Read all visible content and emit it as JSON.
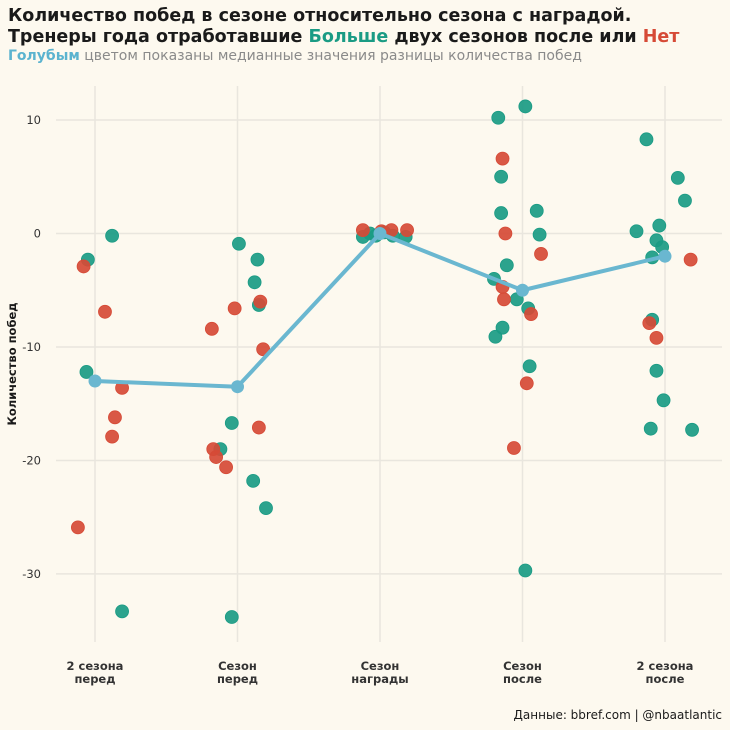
{
  "header": {
    "title_line1": "Количество побед в сезоне относительно сезона с наградой.",
    "title_line2_prefix": "Тренеры года отработавшие ",
    "title_line2_more": "Больше",
    "title_line2_middle": " двух сезонов после или ",
    "title_line2_no": "Нет",
    "subtitle_blue": "Голубым",
    "subtitle_rest": " цветом показаны медианные значения разницы количества побед"
  },
  "caption": "Данные: bbref.com | @nbaatlantic",
  "colors": {
    "more": "#1a9b84",
    "no": "#d64a36",
    "median": "#6ab7d0",
    "grid": "#e9e6de",
    "background": "#fdf9ef"
  },
  "chart_data": {
    "type": "scatter",
    "ylabel": "Количество побед",
    "xlabel": "",
    "ylim": [
      -36,
      13
    ],
    "yticks": [
      10,
      0,
      -10,
      -20,
      -30
    ],
    "categories": [
      [
        "2 сезона",
        "перед"
      ],
      [
        "Сезон",
        "перед"
      ],
      [
        "Сезон",
        "награды"
      ],
      [
        "Сезон",
        "после"
      ],
      [
        "2 сезона",
        "после"
      ]
    ],
    "series": [
      {
        "name": "Больше",
        "points": [
          {
            "cat": 0,
            "j": -0.05,
            "y": -2.3
          },
          {
            "cat": 0,
            "j": 0.12,
            "y": -0.2
          },
          {
            "cat": 0,
            "j": -0.06,
            "y": -12.2
          },
          {
            "cat": 0,
            "j": 0.19,
            "y": -33.3
          },
          {
            "cat": 1,
            "j": 0.01,
            "y": -0.9
          },
          {
            "cat": 1,
            "j": 0.14,
            "y": -2.3
          },
          {
            "cat": 1,
            "j": 0.12,
            "y": -4.3
          },
          {
            "cat": 1,
            "j": 0.15,
            "y": -6.3
          },
          {
            "cat": 1,
            "j": -0.04,
            "y": -16.7
          },
          {
            "cat": 1,
            "j": -0.12,
            "y": -19.0
          },
          {
            "cat": 1,
            "j": 0.11,
            "y": -21.8
          },
          {
            "cat": 1,
            "j": 0.2,
            "y": -24.2
          },
          {
            "cat": 1,
            "j": -0.04,
            "y": -33.8
          },
          {
            "cat": 2,
            "j": -0.12,
            "y": -0.3
          },
          {
            "cat": 2,
            "j": -0.07,
            "y": 0.0
          },
          {
            "cat": 2,
            "j": -0.03,
            "y": -0.2
          },
          {
            "cat": 2,
            "j": 0.03,
            "y": 0.1
          },
          {
            "cat": 2,
            "j": 0.09,
            "y": -0.2
          },
          {
            "cat": 2,
            "j": 0.18,
            "y": -0.3
          },
          {
            "cat": 3,
            "j": -0.17,
            "y": 10.2
          },
          {
            "cat": 3,
            "j": 0.02,
            "y": 11.2
          },
          {
            "cat": 3,
            "j": -0.15,
            "y": 5.0
          },
          {
            "cat": 3,
            "j": -0.15,
            "y": 1.8
          },
          {
            "cat": 3,
            "j": 0.1,
            "y": 2.0
          },
          {
            "cat": 3,
            "j": 0.12,
            "y": -0.1
          },
          {
            "cat": 3,
            "j": -0.11,
            "y": -2.8
          },
          {
            "cat": 3,
            "j": -0.2,
            "y": -4.0
          },
          {
            "cat": 3,
            "j": -0.04,
            "y": -5.8
          },
          {
            "cat": 3,
            "j": 0.04,
            "y": -6.6
          },
          {
            "cat": 3,
            "j": -0.14,
            "y": -8.3
          },
          {
            "cat": 3,
            "j": -0.19,
            "y": -9.1
          },
          {
            "cat": 3,
            "j": 0.05,
            "y": -11.7
          },
          {
            "cat": 3,
            "j": 0.02,
            "y": -29.7
          },
          {
            "cat": 4,
            "j": -0.13,
            "y": 8.3
          },
          {
            "cat": 4,
            "j": 0.09,
            "y": 4.9
          },
          {
            "cat": 4,
            "j": 0.14,
            "y": 2.9
          },
          {
            "cat": 4,
            "j": -0.2,
            "y": 0.2
          },
          {
            "cat": 4,
            "j": -0.04,
            "y": 0.7
          },
          {
            "cat": 4,
            "j": -0.06,
            "y": -0.6
          },
          {
            "cat": 4,
            "j": -0.02,
            "y": -1.2
          },
          {
            "cat": 4,
            "j": -0.09,
            "y": -2.1
          },
          {
            "cat": 4,
            "j": -0.09,
            "y": -7.6
          },
          {
            "cat": 4,
            "j": -0.06,
            "y": -12.1
          },
          {
            "cat": 4,
            "j": -0.01,
            "y": -14.7
          },
          {
            "cat": 4,
            "j": -0.1,
            "y": -17.2
          },
          {
            "cat": 4,
            "j": 0.19,
            "y": -17.3
          }
        ]
      },
      {
        "name": "Нет",
        "points": [
          {
            "cat": 0,
            "j": -0.08,
            "y": -2.9
          },
          {
            "cat": 0,
            "j": 0.07,
            "y": -6.9
          },
          {
            "cat": 0,
            "j": 0.19,
            "y": -13.6
          },
          {
            "cat": 0,
            "j": 0.14,
            "y": -16.2
          },
          {
            "cat": 0,
            "j": 0.12,
            "y": -17.9
          },
          {
            "cat": 0,
            "j": -0.12,
            "y": -25.9
          },
          {
            "cat": 1,
            "j": -0.02,
            "y": -6.6
          },
          {
            "cat": 1,
            "j": 0.16,
            "y": -6.0
          },
          {
            "cat": 1,
            "j": -0.18,
            "y": -8.4
          },
          {
            "cat": 1,
            "j": 0.18,
            "y": -10.2
          },
          {
            "cat": 1,
            "j": 0.15,
            "y": -17.1
          },
          {
            "cat": 1,
            "j": -0.17,
            "y": -19.0
          },
          {
            "cat": 1,
            "j": -0.15,
            "y": -19.7
          },
          {
            "cat": 1,
            "j": -0.08,
            "y": -20.6
          },
          {
            "cat": 2,
            "j": -0.12,
            "y": 0.3
          },
          {
            "cat": 2,
            "j": 0.01,
            "y": 0.2
          },
          {
            "cat": 2,
            "j": 0.08,
            "y": 0.3
          },
          {
            "cat": 2,
            "j": 0.19,
            "y": 0.3
          },
          {
            "cat": 3,
            "j": -0.14,
            "y": 6.6
          },
          {
            "cat": 3,
            "j": -0.12,
            "y": 0.0
          },
          {
            "cat": 3,
            "j": 0.13,
            "y": -1.8
          },
          {
            "cat": 3,
            "j": -0.14,
            "y": -4.7
          },
          {
            "cat": 3,
            "j": -0.13,
            "y": -5.8
          },
          {
            "cat": 3,
            "j": 0.06,
            "y": -7.1
          },
          {
            "cat": 3,
            "j": 0.03,
            "y": -13.2
          },
          {
            "cat": 3,
            "j": -0.06,
            "y": -18.9
          },
          {
            "cat": 4,
            "j": -0.11,
            "y": -7.9
          },
          {
            "cat": 4,
            "j": -0.06,
            "y": -9.2
          },
          {
            "cat": 4,
            "j": 0.18,
            "y": -2.3
          }
        ]
      }
    ],
    "medians": [
      -13.0,
      -13.5,
      0.0,
      -5.0,
      -2.0
    ]
  }
}
